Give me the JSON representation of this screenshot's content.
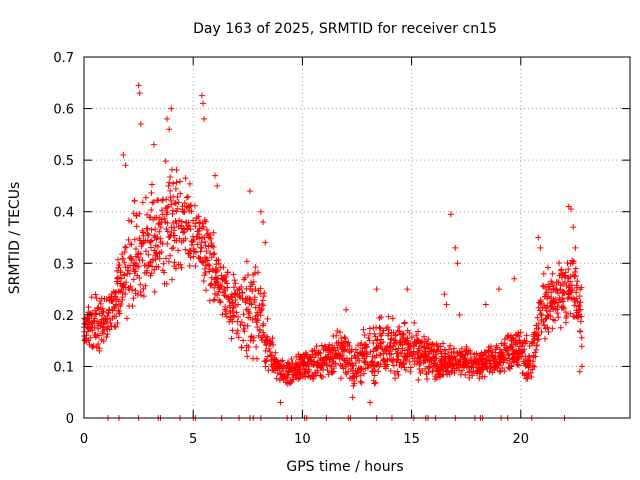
{
  "chart_data": {
    "type": "scatter",
    "title": "Day 163 of 2025, SRMTID for receiver cn15",
    "xlabel": "GPS time / hours",
    "ylabel": "SRMTID / TECUs",
    "xlim": [
      0,
      25
    ],
    "ylim": [
      0,
      0.7
    ],
    "xticks": [
      0,
      5,
      10,
      15,
      20
    ],
    "yticks": [
      0,
      0.1,
      0.2,
      0.3,
      0.4,
      0.5,
      0.6,
      0.7
    ],
    "ytick_labels": [
      "0",
      "0.1",
      "0.2",
      "0.3",
      "0.4",
      "0.5",
      "0.6",
      "0.7"
    ],
    "grid": true,
    "marker": "+",
    "color": "#ff0000",
    "envelope": {
      "x": [
        0,
        0.5,
        1,
        1.5,
        2,
        2.5,
        3,
        3.5,
        4,
        4.5,
        5,
        5.5,
        6,
        6.5,
        7,
        7.5,
        8,
        8.5,
        9,
        9.5,
        10,
        10.5,
        11,
        11.5,
        12,
        12.5,
        13,
        13.5,
        14,
        14.5,
        15,
        15.5,
        16,
        16.5,
        17,
        17.5,
        18,
        18.5,
        19,
        19.5,
        20,
        20.5,
        21,
        21.5,
        22,
        22.5,
        22.8
      ],
      "low": [
        0.15,
        0.11,
        0.14,
        0.16,
        0.18,
        0.2,
        0.22,
        0.24,
        0.26,
        0.27,
        0.27,
        0.24,
        0.2,
        0.18,
        0.12,
        0.1,
        0.09,
        0.08,
        0.06,
        0.06,
        0.07,
        0.07,
        0.07,
        0.08,
        0.06,
        0.05,
        0.07,
        0.06,
        0.07,
        0.07,
        0.07,
        0.07,
        0.07,
        0.07,
        0.07,
        0.08,
        0.07,
        0.08,
        0.08,
        0.08,
        0.08,
        0.06,
        0.14,
        0.16,
        0.16,
        0.16,
        0.09
      ],
      "high": [
        0.2,
        0.26,
        0.24,
        0.3,
        0.4,
        0.45,
        0.46,
        0.5,
        0.52,
        0.48,
        0.45,
        0.42,
        0.36,
        0.3,
        0.28,
        0.32,
        0.33,
        0.18,
        0.12,
        0.12,
        0.13,
        0.14,
        0.15,
        0.18,
        0.17,
        0.16,
        0.19,
        0.21,
        0.2,
        0.2,
        0.19,
        0.17,
        0.15,
        0.15,
        0.14,
        0.14,
        0.14,
        0.14,
        0.15,
        0.17,
        0.19,
        0.15,
        0.3,
        0.3,
        0.33,
        0.34,
        0.29
      ]
    },
    "spikes": [
      {
        "x": 2.5,
        "y": 0.645
      },
      {
        "x": 2.55,
        "y": 0.63
      },
      {
        "x": 2.6,
        "y": 0.57
      },
      {
        "x": 1.8,
        "y": 0.51
      },
      {
        "x": 1.9,
        "y": 0.49
      },
      {
        "x": 3.2,
        "y": 0.53
      },
      {
        "x": 3.8,
        "y": 0.58
      },
      {
        "x": 3.9,
        "y": 0.56
      },
      {
        "x": 4.0,
        "y": 0.6
      },
      {
        "x": 5.4,
        "y": 0.625
      },
      {
        "x": 5.45,
        "y": 0.61
      },
      {
        "x": 5.5,
        "y": 0.58
      },
      {
        "x": 6.0,
        "y": 0.47
      },
      {
        "x": 6.1,
        "y": 0.45
      },
      {
        "x": 7.6,
        "y": 0.44
      },
      {
        "x": 8.1,
        "y": 0.4
      },
      {
        "x": 8.2,
        "y": 0.38
      },
      {
        "x": 8.3,
        "y": 0.34
      },
      {
        "x": 9.0,
        "y": 0.03
      },
      {
        "x": 12.0,
        "y": 0.21
      },
      {
        "x": 12.3,
        "y": 0.04
      },
      {
        "x": 13.1,
        "y": 0.03
      },
      {
        "x": 13.4,
        "y": 0.25
      },
      {
        "x": 14.8,
        "y": 0.25
      },
      {
        "x": 16.5,
        "y": 0.24
      },
      {
        "x": 16.6,
        "y": 0.22
      },
      {
        "x": 16.8,
        "y": 0.395
      },
      {
        "x": 17.0,
        "y": 0.33
      },
      {
        "x": 17.1,
        "y": 0.3
      },
      {
        "x": 17.2,
        "y": 0.2
      },
      {
        "x": 18.4,
        "y": 0.22
      },
      {
        "x": 19.0,
        "y": 0.25
      },
      {
        "x": 19.7,
        "y": 0.27
      },
      {
        "x": 20.8,
        "y": 0.35
      },
      {
        "x": 20.9,
        "y": 0.33
      },
      {
        "x": 22.2,
        "y": 0.41
      },
      {
        "x": 22.3,
        "y": 0.405
      },
      {
        "x": 22.4,
        "y": 0.37
      },
      {
        "x": 22.5,
        "y": 0.33
      },
      {
        "x": 22.8,
        "y": 0.1
      },
      {
        "x": 22.7,
        "y": 0.09
      }
    ],
    "baseline_markers_x": [
      1.1,
      1.6,
      2.5,
      3.4,
      3.5,
      4.4,
      5.0,
      5.1,
      6.3,
      7.1,
      7.6,
      7.75,
      8.1,
      9.3,
      9.5,
      10.1,
      10.2,
      11.1,
      12.1,
      12.2,
      13.4,
      14.1,
      15.1,
      15.65,
      15.75,
      16.1,
      17.0,
      17.9,
      18.15,
      18.25,
      19.1,
      19.4,
      20.5,
      22.0
    ]
  }
}
